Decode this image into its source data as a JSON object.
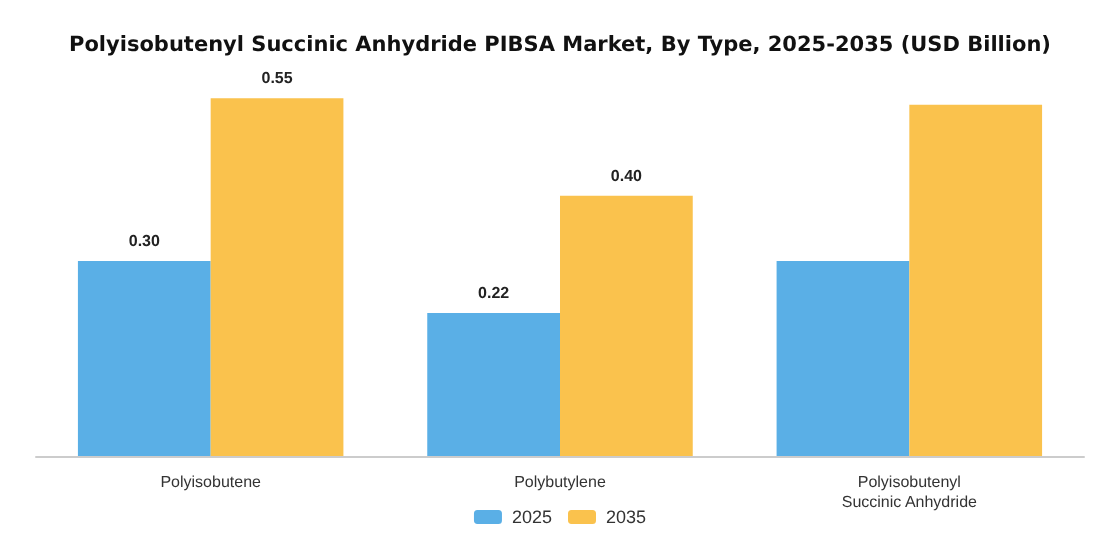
{
  "chart_data": {
    "type": "bar",
    "title": "Polyisobutenyl Succinic Anhydride PIBSA Market, By Type, 2025-2035 (USD Billion)",
    "categories": [
      "Polyisobutene",
      "Polybutylene",
      "Polyisobutenyl\nSuccinic Anhydride"
    ],
    "series": [
      {
        "name": "2025",
        "color": "#5aafe6",
        "values": [
          0.3,
          0.22,
          0.3
        ],
        "value_labels": [
          "0.30",
          "0.22",
          null
        ]
      },
      {
        "name": "2035",
        "color": "#fac24d",
        "values": [
          0.55,
          0.4,
          0.54
        ],
        "value_labels": [
          "0.55",
          "0.40",
          null
        ]
      }
    ],
    "grid": false,
    "legend": "bottom"
  }
}
